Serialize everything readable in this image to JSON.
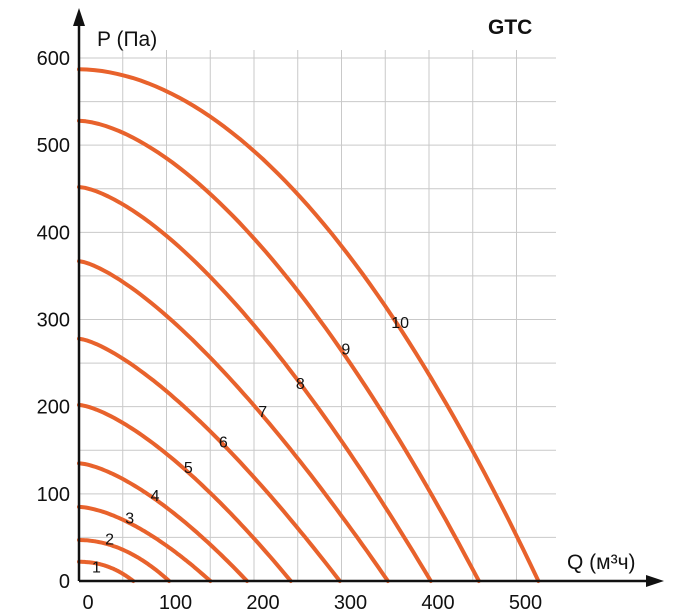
{
  "chart_data": {
    "type": "line",
    "title": "GTC",
    "xlabel": "Q (м³ч)",
    "ylabel": "P (Па)",
    "xlim": [
      0,
      540
    ],
    "ylim": [
      0,
      600
    ],
    "xticks": [
      0,
      100,
      200,
      300,
      400,
      500
    ],
    "yticks": [
      0,
      100,
      200,
      300,
      400,
      500,
      600
    ],
    "grid": true,
    "line_color": "#e8622c",
    "series": [
      {
        "name": "1",
        "label": "1",
        "p0": 22,
        "q_max": 62,
        "exp": 2.2,
        "label_at": [
          20,
          10
        ]
      },
      {
        "name": "2",
        "label": "2",
        "p0": 47,
        "q_max": 103,
        "exp": 2.0,
        "label_at": [
          35,
          42
        ]
      },
      {
        "name": "3",
        "label": "3",
        "p0": 85,
        "q_max": 150,
        "exp": 1.6,
        "label_at": [
          58,
          66
        ]
      },
      {
        "name": "4",
        "label": "4",
        "p0": 135,
        "q_max": 192,
        "exp": 1.5,
        "label_at": [
          87,
          92
        ]
      },
      {
        "name": "5",
        "label": "5",
        "p0": 202,
        "q_max": 242,
        "exp": 1.45,
        "label_at": [
          125,
          124
        ]
      },
      {
        "name": "6",
        "label": "6",
        "p0": 278,
        "q_max": 298,
        "exp": 1.4,
        "label_at": [
          165,
          153
        ]
      },
      {
        "name": "7",
        "label": "7",
        "p0": 367,
        "q_max": 353,
        "exp": 1.4,
        "label_at": [
          210,
          188
        ]
      },
      {
        "name": "8",
        "label": "8",
        "p0": 452,
        "q_max": 402,
        "exp": 1.5,
        "label_at": [
          253,
          220
        ]
      },
      {
        "name": "9",
        "label": "9",
        "p0": 528,
        "q_max": 457,
        "exp": 1.65,
        "label_at": [
          305,
          260
        ]
      },
      {
        "name": "10",
        "label": "10",
        "p0": 587,
        "q_max": 525,
        "exp": 1.9,
        "label_at": [
          367,
          290
        ]
      }
    ]
  }
}
